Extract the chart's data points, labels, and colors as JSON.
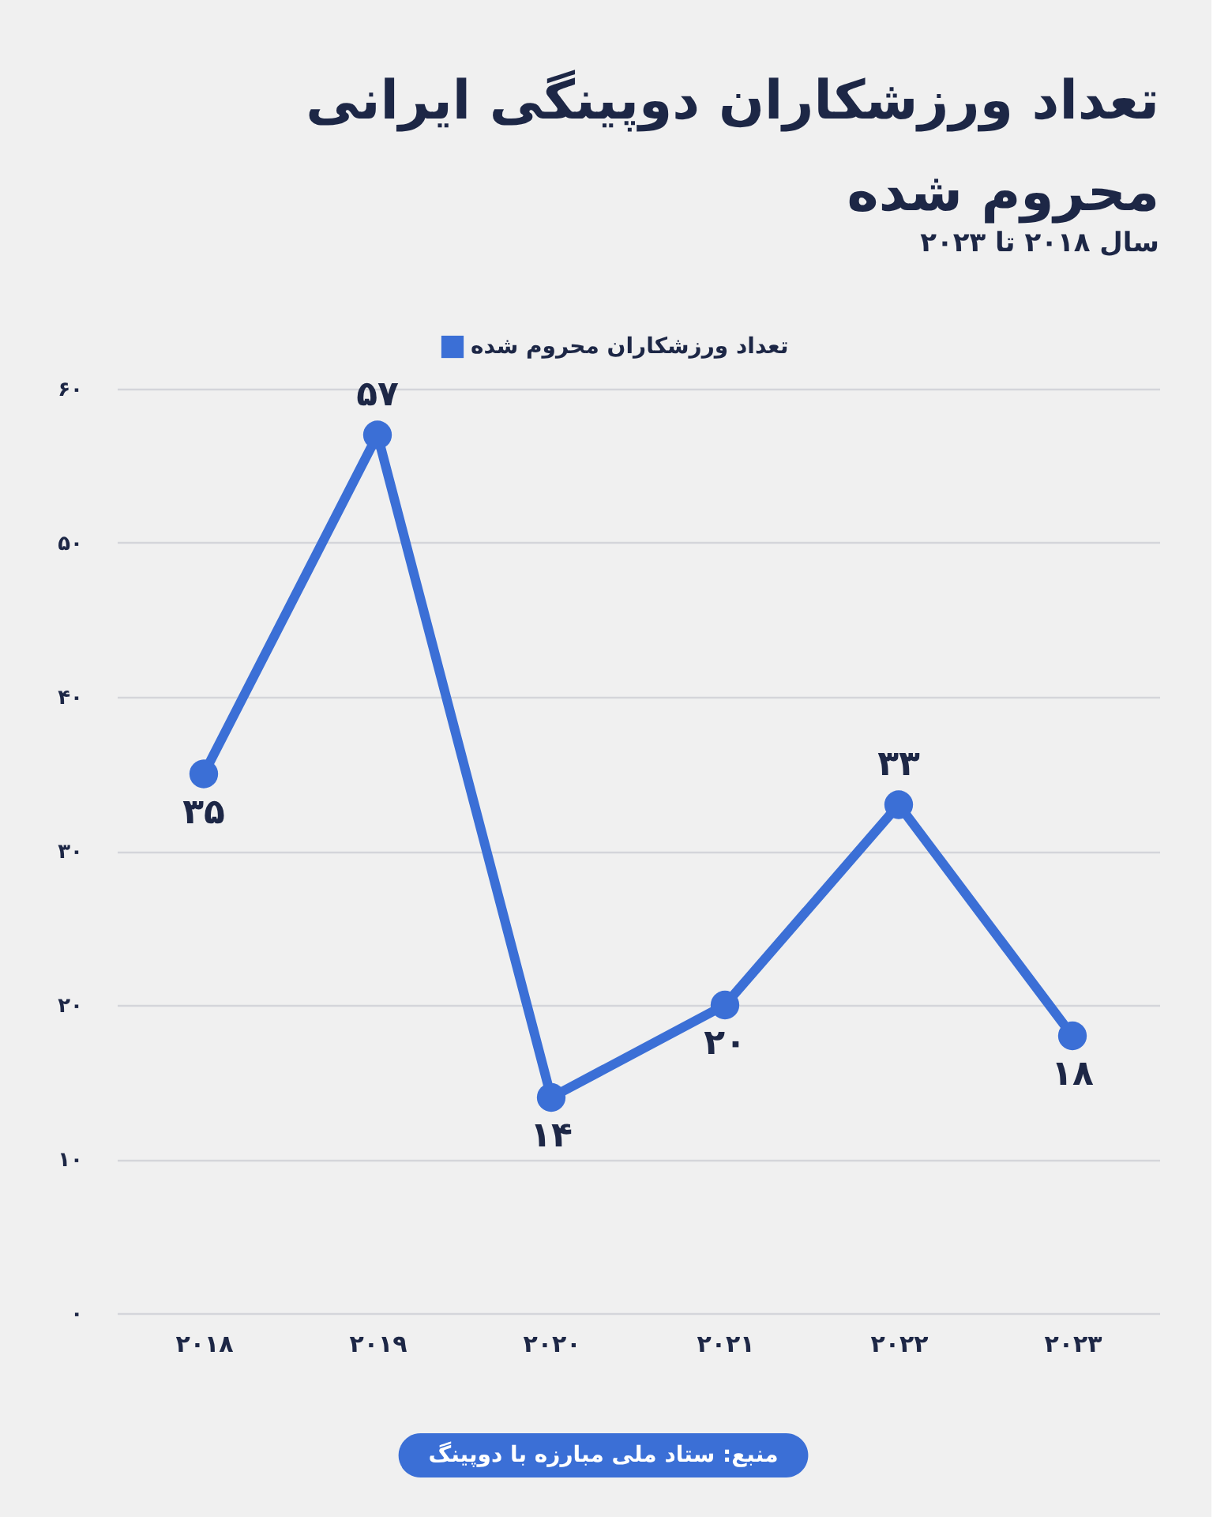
{
  "chart_data": {
    "type": "line",
    "title": "تعداد ورزشکاران دوپینگی ایرانی محروم شده",
    "subtitle": "سال ۲۰۱۸ تا ۲۰۲۳",
    "categories": [
      "۲۰۱۸",
      "۲۰۱۹",
      "۲۰۲۰",
      "۲۰۲۱",
      "۲۰۲۲",
      "۲۰۲۳"
    ],
    "series": [
      {
        "name": "تعداد ورزشکاران محروم شده",
        "color": "#3b6fd6",
        "values": [
          35,
          57,
          14,
          20,
          33,
          18
        ],
        "value_labels": [
          "۳۵",
          "۵۷",
          "۱۴",
          "۲۰",
          "۳۳",
          "۱۸"
        ]
      }
    ],
    "ylim": [
      0,
      60
    ],
    "yticks": [
      {
        "value": 0,
        "label": "۰"
      },
      {
        "value": 10,
        "label": "۱۰"
      },
      {
        "value": 20,
        "label": "۲۰"
      },
      {
        "value": 30,
        "label": "۳۰"
      },
      {
        "value": 40,
        "label": "۴۰"
      },
      {
        "value": 50,
        "label": "۵۰"
      },
      {
        "value": 60,
        "label": "۶۰"
      }
    ],
    "grid": "y",
    "legend": "top",
    "marker": "circle",
    "line_style": "solid",
    "annotations": [
      "منبع: ستاد ملی مبارزه با دوپینگ"
    ]
  }
}
